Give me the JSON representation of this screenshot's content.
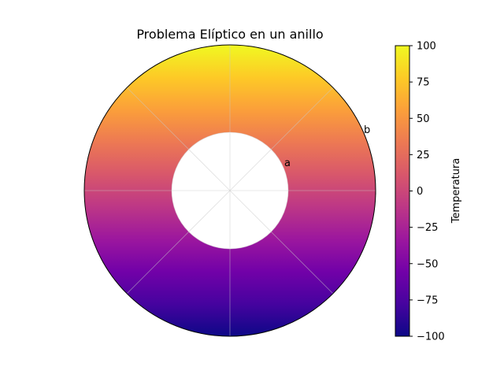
{
  "chart_data": {
    "type": "heatmap",
    "title": "Problema Elíptico en un anillo",
    "radial_tick_labels": [
      "a",
      "b"
    ],
    "colorbar": {
      "label": "Temperatura",
      "colormap": "plasma",
      "vmin": -100,
      "vmax": 100,
      "ticks": [
        100,
        75,
        50,
        25,
        0,
        -25,
        -50,
        -75,
        -100
      ],
      "tick_labels": [
        "100",
        "75",
        "50",
        "25",
        "0",
        "−25",
        "−50",
        "−75",
        "−100"
      ]
    },
    "field": {
      "domain": "annulus",
      "inner_radius_fraction": 0.4,
      "outer_radius_fraction": 1.0,
      "pattern": "temperature = 100·sin(θ)",
      "max_at": "top",
      "min_at": "bottom"
    },
    "grid": true,
    "plasma_stops": [
      "#0d0887",
      "#46039f",
      "#7201a8",
      "#9c179e",
      "#bd3786",
      "#d8576b",
      "#ed7953",
      "#fb9f3a",
      "#fdca26",
      "#f0f921"
    ]
  }
}
